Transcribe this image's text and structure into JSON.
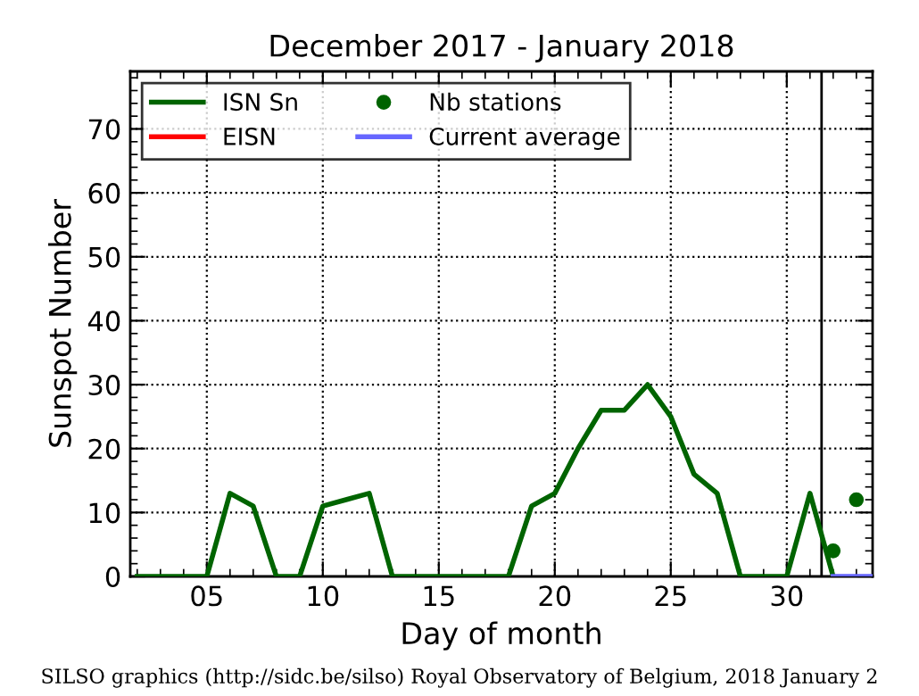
{
  "chart_data": {
    "type": "line",
    "title": "December 2017 - January 2018",
    "xlabel": "Day of month",
    "ylabel": "Sunspot Number",
    "xlim": [
      1.7,
      33.7
    ],
    "ylim": [
      0,
      79
    ],
    "xticks": [
      {
        "value": 5,
        "label": "05"
      },
      10,
      15,
      20,
      25,
      30
    ],
    "yticks": [
      0,
      10,
      20,
      30,
      40,
      50,
      60,
      70
    ],
    "grid": true,
    "legend": "top left",
    "series": [
      {
        "name": "ISN Sn",
        "color": "#006400",
        "x": [
          2,
          3,
          4,
          5,
          6,
          7,
          8,
          9,
          10,
          11,
          12,
          13,
          14,
          15,
          16,
          17,
          18,
          19,
          20,
          21,
          22,
          23,
          24,
          25,
          26,
          27,
          28,
          29,
          30,
          31,
          32
        ],
        "values": [
          0,
          0,
          0,
          0,
          13,
          11,
          0,
          0,
          11,
          12,
          13,
          0,
          0,
          0,
          0,
          0,
          0,
          11,
          13,
          20,
          26,
          26,
          30,
          25,
          16,
          13,
          0,
          0,
          0,
          13,
          0
        ]
      },
      {
        "name": "EISN",
        "color": "#ff0000"
      },
      {
        "name": "Nb stations",
        "color": "#006400",
        "type": "scatter",
        "marker": "circle",
        "x": [
          32,
          33
        ],
        "values": [
          4,
          12
        ]
      },
      {
        "name": "Current average",
        "color": "#6666ff",
        "x": [
          32,
          33.7
        ],
        "values": [
          0,
          0
        ]
      }
    ],
    "ref_lines": [
      {
        "axis": "x",
        "value": 31.5,
        "color": "#000000"
      }
    ],
    "annotations": [
      "SILSO graphics (http://sidc.be/silso) Royal Observatory of Belgium, 2018 January 2"
    ]
  }
}
